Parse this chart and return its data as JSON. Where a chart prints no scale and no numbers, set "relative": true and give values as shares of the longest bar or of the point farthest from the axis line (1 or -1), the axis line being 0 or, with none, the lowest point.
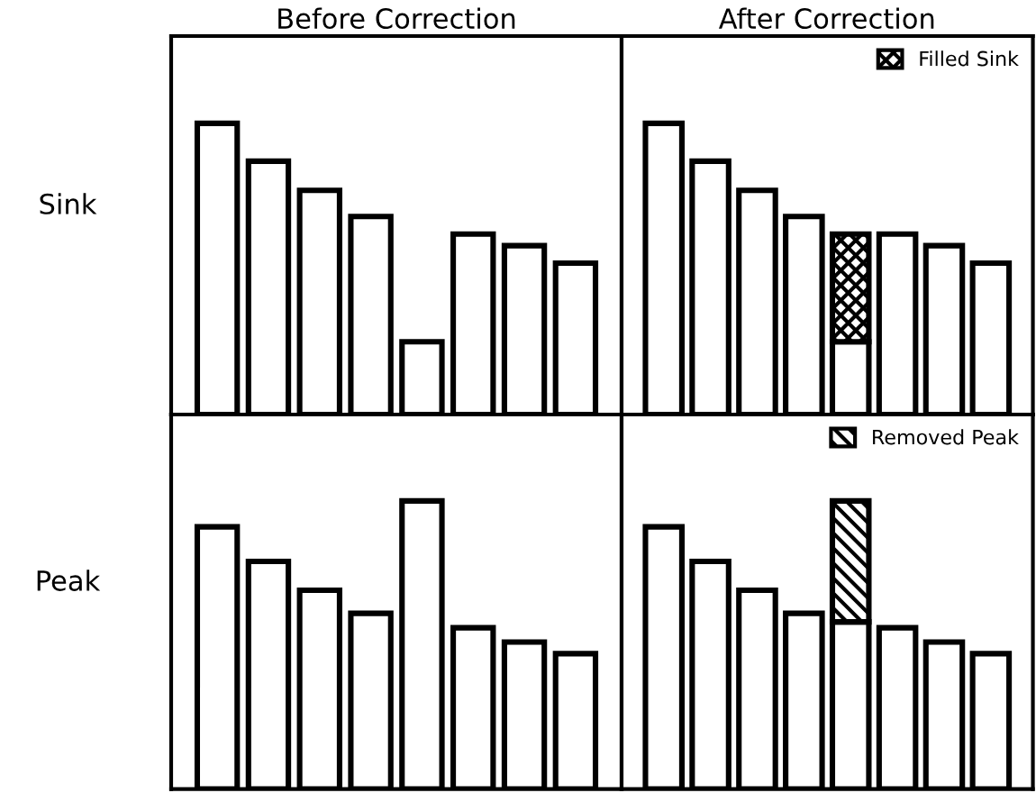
{
  "chart_data": [
    {
      "type": "bar",
      "title": "Before Correction",
      "ylabel": "Sink",
      "relative": true,
      "categories": [
        null,
        null,
        null,
        null,
        null,
        null,
        null,
        null
      ],
      "series": [
        {
          "color": "#ffffff",
          "values": [
            1,
            0.87,
            0.77,
            0.68,
            0.25,
            0.62,
            0.58,
            0.52
          ]
        }
      ]
    },
    {
      "type": "bar",
      "title": "After Correction",
      "relative": true,
      "stacked": true,
      "legend": "top right",
      "categories": [
        null,
        null,
        null,
        null,
        null,
        null,
        null,
        null
      ],
      "series": [
        {
          "color": "#ffffff",
          "values": [
            1,
            0.87,
            0.77,
            0.68,
            0.25,
            0.62,
            0.58,
            0.52
          ]
        },
        {
          "name": "Filled Sink",
          "color": "#000000",
          "values": [
            null,
            null,
            null,
            null,
            0.37,
            null,
            null,
            null
          ]
        }
      ]
    },
    {
      "type": "bar",
      "ylabel": "Peak",
      "relative": true,
      "categories": [
        null,
        null,
        null,
        null,
        null,
        null,
        null,
        null
      ],
      "series": [
        {
          "color": "#ffffff",
          "values": [
            0.91,
            0.79,
            0.69,
            0.61,
            1,
            0.56,
            0.51,
            0.47
          ]
        }
      ]
    },
    {
      "type": "bar",
      "relative": true,
      "stacked": true,
      "legend": "top right",
      "categories": [
        null,
        null,
        null,
        null,
        null,
        null,
        null,
        null
      ],
      "series": [
        {
          "color": "#ffffff",
          "values": [
            0.91,
            0.79,
            0.69,
            0.61,
            0.58,
            0.56,
            0.51,
            0.47
          ]
        },
        {
          "name": "Removed Peak",
          "color": "#000000",
          "values": [
            null,
            null,
            null,
            null,
            0.42,
            null,
            null,
            null
          ]
        }
      ]
    }
  ]
}
